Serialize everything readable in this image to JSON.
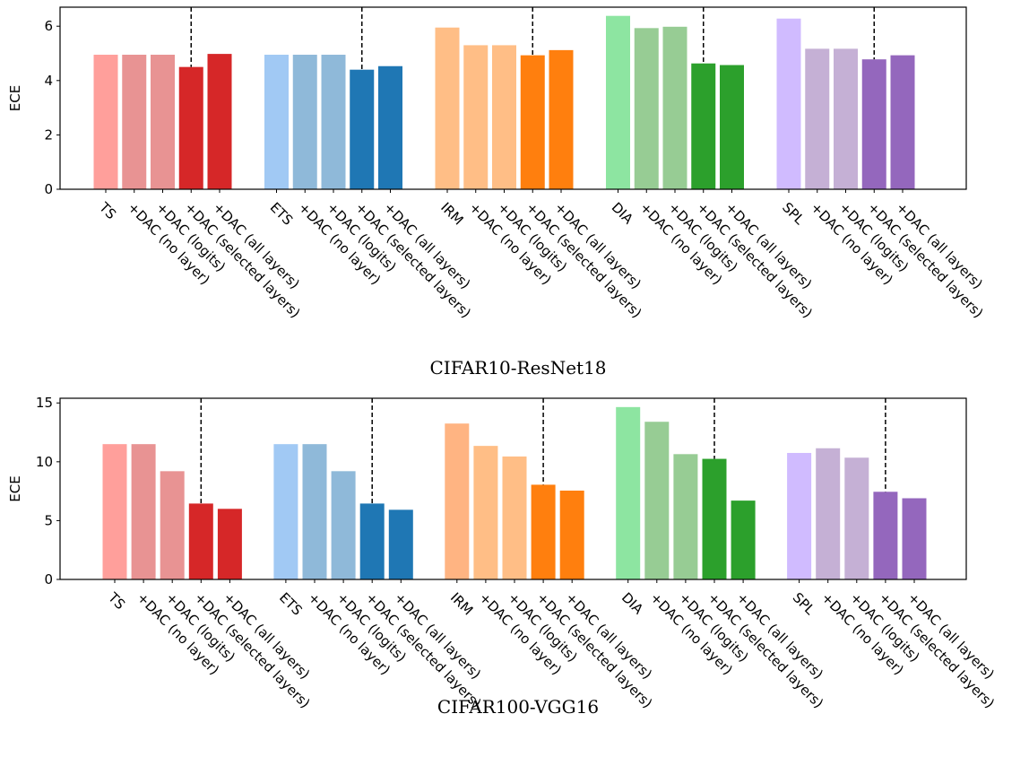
{
  "chart_data": [
    {
      "type": "bar",
      "caption": "CIFAR10-ResNet18",
      "ylabel": "ECE",
      "ylim": [
        0,
        6.7
      ],
      "yticks": [
        0,
        2,
        4,
        6
      ],
      "grid": false,
      "divider_style": "dashed",
      "categories": [
        "TS",
        "+DAC (no layer)",
        "+DAC (logits)",
        "+DAC (selected layers)",
        "+DAC (all layers)",
        "ETS",
        "+DAC (no layer)",
        "+DAC (logits)",
        "+DAC (selected layers)",
        "+DAC (all layers)",
        "IRM",
        "+DAC (no layer)",
        "+DAC (logits)",
        "+DAC (selected layers)",
        "+DAC (all layers)",
        "DIA",
        "+DAC (no layer)",
        "+DAC (logits)",
        "+DAC (selected layers)",
        "+DAC (all layers)",
        "SPL",
        "+DAC (no layer)",
        "+DAC (logits)",
        "+DAC (selected layers)",
        "+DAC (all layers)"
      ],
      "groups": [
        {
          "name": "TS",
          "values": [
            4.95,
            4.95,
            4.95,
            4.5,
            4.98
          ],
          "colors": [
            "#ff9f9b",
            "#e89393",
            "#e89393",
            "#d62728",
            "#d62728"
          ]
        },
        {
          "name": "ETS",
          "values": [
            4.95,
            4.95,
            4.95,
            4.4,
            4.53
          ],
          "colors": [
            "#a1c9f4",
            "#8fb9d9",
            "#8fb9d9",
            "#1f77b4",
            "#1f77b4"
          ]
        },
        {
          "name": "IRM",
          "values": [
            5.95,
            5.3,
            5.3,
            4.93,
            5.12
          ],
          "colors": [
            "#ffbe86",
            "#ffbe86",
            "#ffbe86",
            "#ff7f0e",
            "#ff7f0e"
          ]
        },
        {
          "name": "DIA",
          "values": [
            6.38,
            5.93,
            5.98,
            4.63,
            4.57
          ],
          "colors": [
            "#8de5a1",
            "#97cc94",
            "#97cc94",
            "#2ca02c",
            "#2ca02c"
          ]
        },
        {
          "name": "SPL",
          "values": [
            6.28,
            5.17,
            5.17,
            4.78,
            4.93
          ],
          "colors": [
            "#d0bbff",
            "#c5b0d5",
            "#c5b0d5",
            "#9467bd",
            "#9467bd"
          ]
        }
      ]
    },
    {
      "type": "bar",
      "caption": "CIFAR100-VGG16",
      "ylabel": "ECE",
      "ylim": [
        0,
        15.4
      ],
      "yticks": [
        0,
        5,
        10,
        15
      ],
      "grid": false,
      "divider_style": "dashed",
      "categories": [
        "TS",
        "+DAC (no layer)",
        "+DAC (logits)",
        "+DAC (selected layers)",
        "+DAC (all layers)",
        "ETS",
        "+DAC (no layer)",
        "+DAC (logits)",
        "+DAC (selected layers)",
        "+DAC (all layers)",
        "IRM",
        "+DAC (no layer)",
        "+DAC (logits)",
        "+DAC (selected layers)",
        "+DAC (all layers)",
        "DIA",
        "+DAC (no layer)",
        "+DAC (logits)",
        "+DAC (selected layers)",
        "+DAC (all layers)",
        "SPL",
        "+DAC (no layer)",
        "+DAC (logits)",
        "+DAC (selected layers)",
        "+DAC (all layers)"
      ],
      "groups": [
        {
          "name": "TS",
          "values": [
            11.5,
            11.5,
            9.2,
            6.45,
            6.0
          ],
          "colors": [
            "#ff9f9b",
            "#e89393",
            "#e89393",
            "#d62728",
            "#d62728"
          ]
        },
        {
          "name": "ETS",
          "values": [
            11.5,
            11.5,
            9.2,
            6.45,
            5.92
          ],
          "colors": [
            "#a1c9f4",
            "#8fb9d9",
            "#8fb9d9",
            "#1f77b4",
            "#1f77b4"
          ]
        },
        {
          "name": "IRM",
          "values": [
            13.25,
            11.35,
            10.45,
            8.05,
            7.55
          ],
          "colors": [
            "#ffb482",
            "#ffbe86",
            "#ffbe86",
            "#ff7f0e",
            "#ff7f0e"
          ]
        },
        {
          "name": "DIA",
          "values": [
            14.65,
            13.4,
            10.65,
            10.25,
            6.7
          ],
          "colors": [
            "#8de5a1",
            "#97cc94",
            "#97cc94",
            "#2ca02c",
            "#2ca02c"
          ]
        },
        {
          "name": "SPL",
          "values": [
            10.75,
            11.15,
            10.35,
            7.45,
            6.9
          ],
          "colors": [
            "#d0bbff",
            "#c5b0d5",
            "#c5b0d5",
            "#9467bd",
            "#9467bd"
          ]
        }
      ]
    }
  ]
}
